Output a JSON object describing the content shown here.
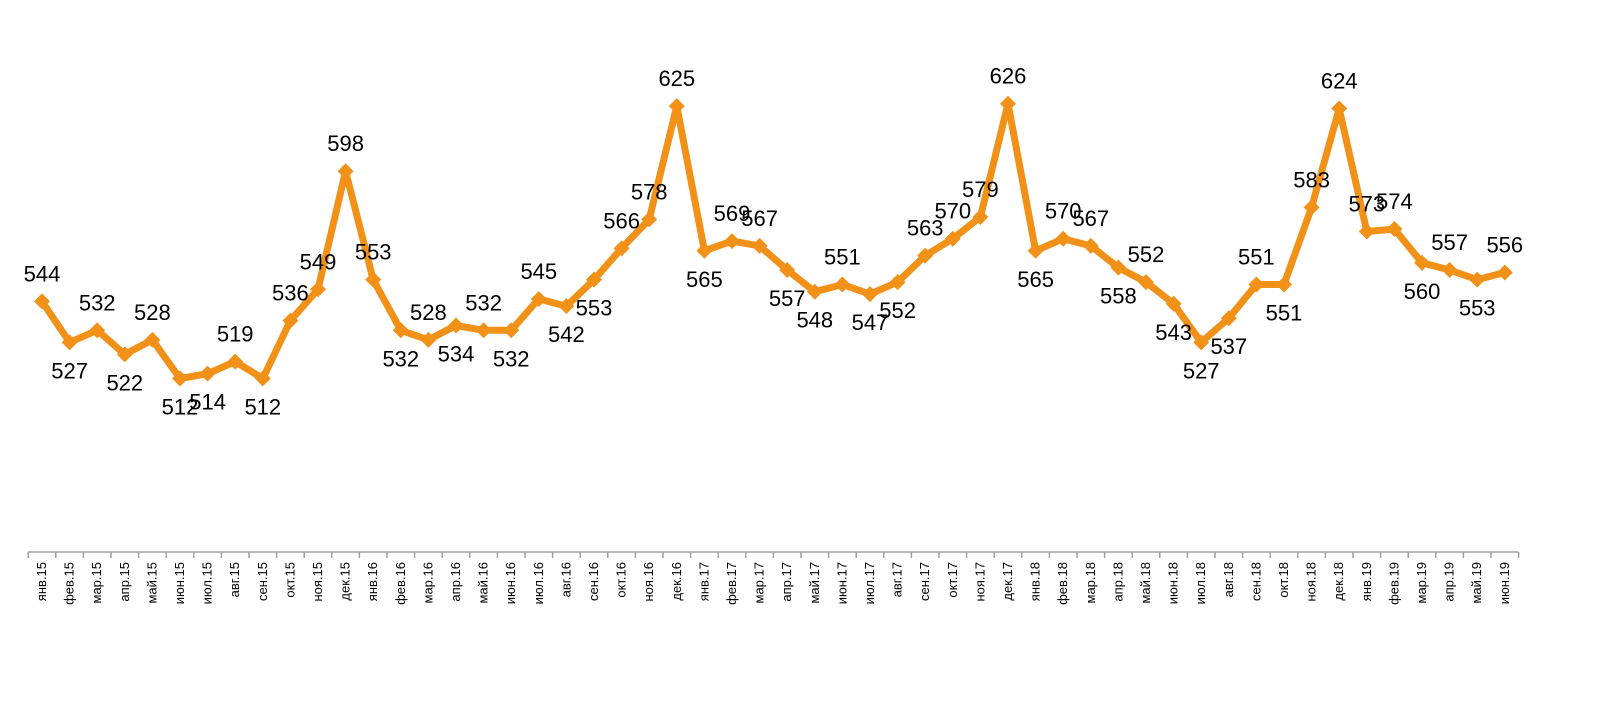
{
  "chart_data": {
    "type": "line",
    "title": "",
    "xlabel": "",
    "ylabel": "",
    "ylim": [
      440,
      640
    ],
    "grid": false,
    "legend": "none",
    "series_color": "#F29118",
    "axis_color": "#A0A0A0",
    "categories": [
      "янв.15",
      "фев.15",
      "мар.15",
      "апр.15",
      "май.15",
      "июн.15",
      "июл.15",
      "авг.15",
      "сен.15",
      "окт.15",
      "ноя.15",
      "дек.15",
      "янв.16",
      "фев.16",
      "мар.16",
      "апр.16",
      "май.16",
      "июн.16",
      "июл.16",
      "авг.16",
      "сен.16",
      "окт.16",
      "ноя.16",
      "дек.16",
      "янв.17",
      "фев.17",
      "мар.17",
      "апр.17",
      "май.17",
      "июн.17",
      "июл.17",
      "авг.17",
      "сен.17",
      "окт.17",
      "ноя.17",
      "дек.17",
      "янв.18",
      "фев.18",
      "мар.18",
      "апр.18",
      "май.18",
      "июн.18",
      "июл.18",
      "авг.18",
      "сен.18",
      "окт.18",
      "ноя.18",
      "дек.18",
      "янв.19",
      "фев.19",
      "мар.19",
      "апр.19",
      "май.19",
      "июн.19"
    ],
    "values": [
      544,
      527,
      532,
      522,
      528,
      512,
      514,
      519,
      512,
      536,
      549,
      598,
      553,
      532,
      528,
      534,
      532,
      532,
      545,
      542,
      553,
      566,
      578,
      625,
      565,
      569,
      567,
      557,
      548,
      551,
      547,
      552,
      563,
      570,
      579,
      626,
      565,
      570,
      567,
      558,
      552,
      543,
      527,
      537,
      551,
      551,
      583,
      624,
      573,
      574,
      560,
      557,
      553,
      556
    ],
    "labels": [
      "544",
      "527",
      "532",
      "522",
      "528",
      "512",
      "514",
      "519",
      "512",
      "536",
      "549",
      "598",
      "553",
      "532",
      "528",
      "534",
      "532",
      "532",
      "545",
      "542",
      "553",
      "566",
      "578",
      "625",
      "565",
      "569",
      "567",
      "557",
      "548",
      "551",
      "547",
      "552",
      "563",
      "570",
      "579",
      "626",
      "565",
      "570",
      "567",
      "558",
      "552",
      "543",
      "527",
      "537",
      "551",
      "551",
      "583",
      "624",
      "573",
      "574",
      "560",
      "557",
      "553",
      "556"
    ],
    "label_positions": [
      "above",
      "below",
      "above",
      "below",
      "above",
      "below",
      "below",
      "above",
      "below",
      "above",
      "above",
      "above",
      "above",
      "below",
      "above",
      "below",
      "above",
      "below",
      "above",
      "below",
      "below",
      "above",
      "above",
      "above",
      "below",
      "above",
      "above",
      "below",
      "below",
      "above",
      "below",
      "below",
      "above",
      "above",
      "above",
      "above",
      "below",
      "above",
      "above",
      "below",
      "above",
      "below",
      "below",
      "below",
      "above",
      "below",
      "above",
      "above",
      "above",
      "above",
      "below",
      "above",
      "below",
      "above"
    ]
  }
}
